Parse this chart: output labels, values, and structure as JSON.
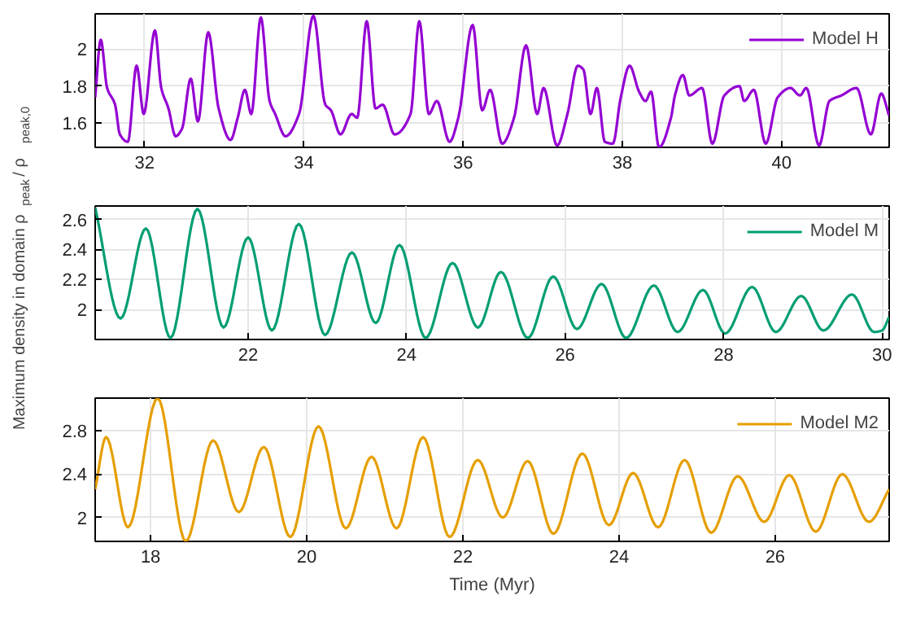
{
  "chart_data": [
    {
      "type": "line",
      "xlim": [
        31.38,
        41.35
      ],
      "ylim": [
        1.47,
        2.19
      ],
      "xticks": [
        32,
        34,
        36,
        38,
        40
      ],
      "yticks": [
        1.6,
        1.8,
        2
      ],
      "grid": true,
      "legend": "top right",
      "line_style": "solid",
      "series": [
        {
          "name": "Model H",
          "color": "#9400d3",
          "x": [
            31.38,
            31.45,
            31.53,
            31.63,
            31.69,
            31.79,
            31.9,
            31.99,
            32.13,
            32.21,
            32.3,
            32.39,
            32.47,
            32.58,
            32.67,
            32.8,
            32.93,
            33.08,
            33.17,
            33.26,
            33.34,
            33.46,
            33.57,
            33.64,
            33.77,
            33.94,
            34.12,
            34.27,
            34.34,
            34.46,
            34.6,
            34.67,
            34.79,
            34.9,
            34.99,
            35.14,
            35.34,
            35.45,
            35.57,
            35.67,
            35.83,
            35.94,
            36.12,
            36.24,
            36.34,
            36.49,
            36.64,
            36.79,
            36.93,
            37.01,
            37.18,
            37.31,
            37.44,
            37.51,
            37.6,
            37.68,
            37.78,
            37.88,
            37.98,
            38.09,
            38.21,
            38.29,
            38.36,
            38.46,
            38.61,
            38.66,
            38.76,
            38.84,
            39.0,
            39.13,
            39.28,
            39.47,
            39.53,
            39.65,
            39.8,
            39.95,
            40.11,
            40.23,
            40.31,
            40.47,
            40.6,
            40.75,
            40.94,
            41.12,
            41.25,
            41.35
          ],
          "values": [
            1.74,
            2.05,
            1.79,
            1.7,
            1.54,
            1.5,
            1.91,
            1.65,
            2.1,
            1.79,
            1.68,
            1.53,
            1.57,
            1.84,
            1.61,
            2.09,
            1.68,
            1.51,
            1.63,
            1.78,
            1.65,
            2.17,
            1.72,
            1.65,
            1.53,
            1.65,
            2.18,
            1.7,
            1.67,
            1.54,
            1.65,
            1.63,
            2.15,
            1.68,
            1.7,
            1.54,
            1.65,
            2.15,
            1.65,
            1.72,
            1.5,
            1.63,
            2.13,
            1.67,
            1.78,
            1.49,
            1.63,
            2.02,
            1.65,
            1.79,
            1.48,
            1.65,
            1.91,
            1.89,
            1.65,
            1.79,
            1.5,
            1.49,
            1.74,
            1.91,
            1.77,
            1.72,
            1.77,
            1.47,
            1.63,
            1.75,
            1.86,
            1.75,
            1.79,
            1.49,
            1.75,
            1.8,
            1.72,
            1.78,
            1.49,
            1.74,
            1.79,
            1.75,
            1.79,
            1.48,
            1.72,
            1.75,
            1.79,
            1.54,
            1.76,
            1.64
          ]
        }
      ]
    },
    {
      "type": "line",
      "xlim": [
        20.07,
        30.09
      ],
      "ylim": [
        1.8,
        2.69
      ],
      "xticks": [
        22,
        24,
        26,
        28,
        30
      ],
      "yticks": [
        2,
        2.2,
        2.4,
        2.6
      ],
      "grid": true,
      "legend": "top right",
      "line_style": "solid",
      "ylabel": "Maximum density in domain ρ$_{peak}$ / ρ$_{peak,0}$",
      "series": [
        {
          "name": "Model M",
          "color": "#009e73",
          "x": [
            20.07,
            20.39,
            20.71,
            21.02,
            21.36,
            21.69,
            22.0,
            22.3,
            22.64,
            22.97,
            23.31,
            23.61,
            23.91,
            24.24,
            24.58,
            24.9,
            25.19,
            25.53,
            25.85,
            26.15,
            26.46,
            26.77,
            27.12,
            27.42,
            27.74,
            28.02,
            28.36,
            28.66,
            28.98,
            29.26,
            29.62,
            29.9,
            30.0,
            30.09
          ],
          "values": [
            2.68,
            1.94,
            2.54,
            1.81,
            2.67,
            1.88,
            2.48,
            1.86,
            2.57,
            1.83,
            2.38,
            1.91,
            2.43,
            1.81,
            2.31,
            1.88,
            2.25,
            1.81,
            2.22,
            1.87,
            2.17,
            1.81,
            2.16,
            1.85,
            2.13,
            1.84,
            2.15,
            1.85,
            2.09,
            1.86,
            2.1,
            1.85,
            1.86,
            1.95
          ]
        }
      ]
    },
    {
      "type": "line",
      "xlim": [
        17.29,
        27.46
      ],
      "ylim": [
        1.78,
        3.1
      ],
      "xticks": [
        18,
        20,
        22,
        24,
        26
      ],
      "yticks": [
        2,
        2.4,
        2.8
      ],
      "grid": true,
      "legend": "top right",
      "line_style": "solid",
      "xlabel": "Time (Myr)",
      "series": [
        {
          "name": "Model M2",
          "color": "#e69f00",
          "x": [
            17.29,
            17.43,
            17.71,
            18.09,
            18.45,
            18.8,
            19.13,
            19.45,
            19.79,
            20.15,
            20.5,
            20.83,
            21.15,
            21.49,
            21.83,
            22.19,
            22.51,
            22.83,
            23.16,
            23.53,
            23.87,
            24.18,
            24.5,
            24.84,
            25.18,
            25.52,
            25.86,
            26.18,
            26.52,
            26.86,
            27.2,
            27.46
          ],
          "values": [
            2.26,
            2.74,
            1.91,
            3.1,
            1.78,
            2.71,
            2.05,
            2.65,
            1.82,
            2.84,
            1.9,
            2.56,
            1.9,
            2.74,
            1.82,
            2.53,
            2.0,
            2.52,
            1.85,
            2.59,
            1.93,
            2.41,
            1.91,
            2.53,
            1.86,
            2.38,
            1.96,
            2.39,
            1.87,
            2.4,
            1.96,
            2.26
          ]
        }
      ]
    }
  ]
}
